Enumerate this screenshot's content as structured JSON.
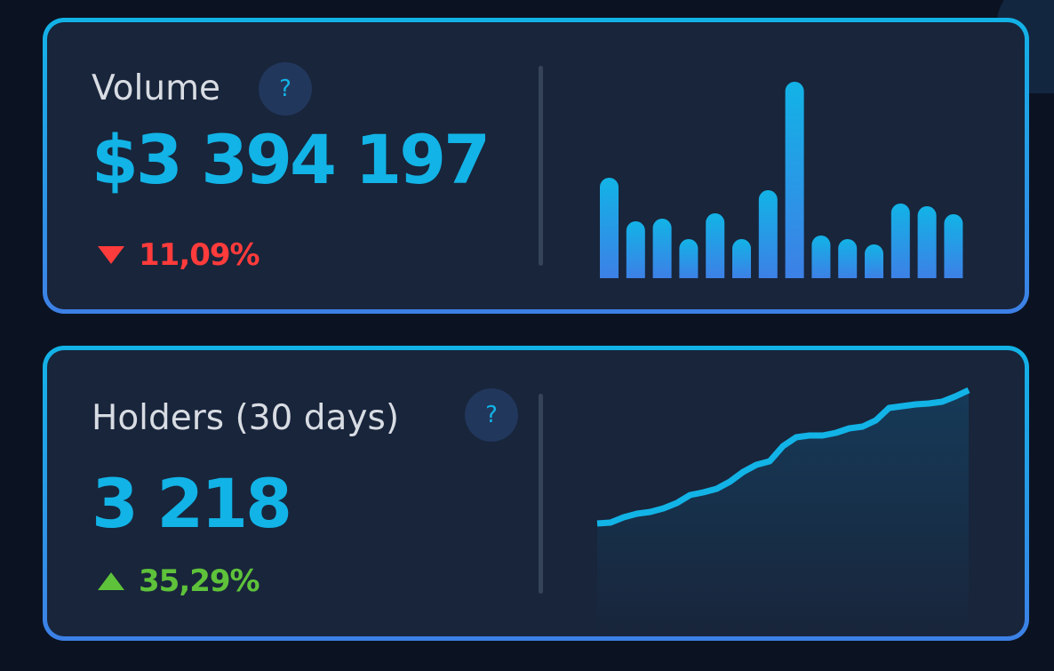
{
  "volume": {
    "title": "Volume",
    "help": "?",
    "value": "$3 394 197",
    "change": "11,09%",
    "direction": "down",
    "chart_data": {
      "type": "bar",
      "values": [
        113,
        64,
        67,
        44,
        73,
        44,
        99,
        221,
        48,
        44,
        38,
        84,
        81,
        72
      ]
    }
  },
  "holders": {
    "title": "Holders (30 days)",
    "help": "?",
    "value": "3 218",
    "change": "35,29%",
    "direction": "up",
    "chart_data": {
      "type": "area",
      "values": [
        0,
        1,
        7,
        11,
        13,
        17,
        23,
        32,
        35,
        39,
        47,
        58,
        66,
        70,
        87,
        97,
        99,
        99,
        102,
        107,
        109,
        116,
        130,
        132,
        134,
        135,
        137,
        143,
        150
      ]
    }
  },
  "colors": {
    "accent": "#12b3e6",
    "down": "#ff3b3b",
    "up": "#5ec23a"
  }
}
